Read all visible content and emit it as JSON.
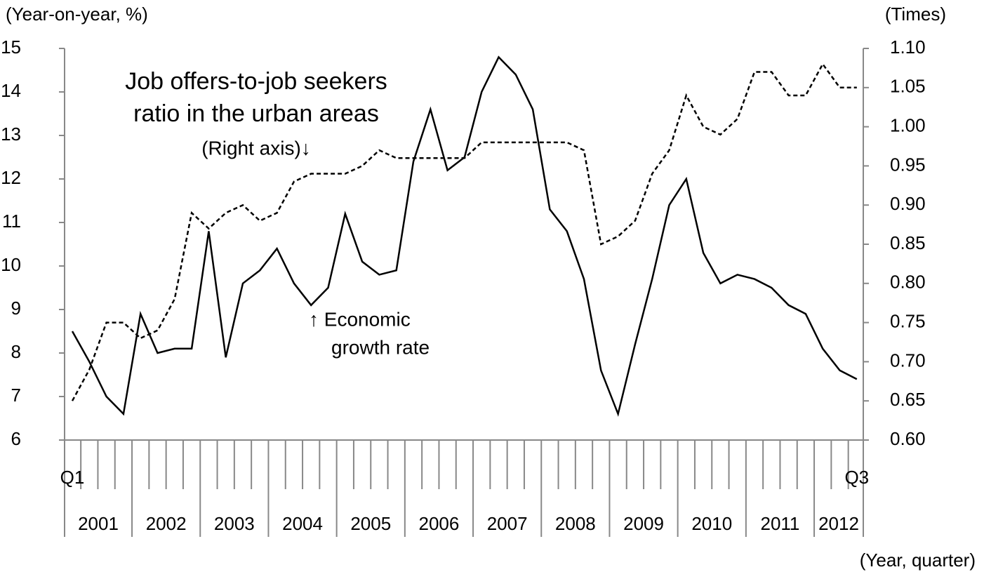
{
  "chart_data": {
    "type": "line",
    "ylabel": "(Year-on-year,  %)",
    "y2label": "(Times)",
    "xlabel": "(Year, quarter)",
    "annotations": [
      "Job offers-to-job seekers",
      "ratio in the urban areas",
      "(Right axis)↓",
      "↑ Economic",
      "growth rate"
    ],
    "categories": [
      "Q1",
      null,
      null,
      null,
      null,
      null,
      null,
      null,
      null,
      null,
      null,
      null,
      null,
      null,
      null,
      null,
      null,
      null,
      null,
      null,
      null,
      null,
      null,
      null,
      null,
      null,
      null,
      null,
      null,
      null,
      null,
      null,
      null,
      null,
      null,
      null,
      null,
      null,
      null,
      null,
      null,
      null,
      null,
      null,
      null,
      null,
      "Q3"
    ],
    "years": [
      "2001",
      "2002",
      "2003",
      "2004",
      "2005",
      "2006",
      "2007",
      "2008",
      "2009",
      "2010",
      "2011",
      "2012"
    ],
    "series": [
      {
        "name": "Economic growth rate",
        "color": "#000000",
        "dashed": false,
        "values": [
          8.5,
          7.8,
          7.0,
          6.6,
          8.9,
          8.0,
          8.1,
          8.1,
          10.8,
          7.9,
          9.6,
          9.9,
          10.4,
          9.6,
          9.1,
          9.5,
          11.2,
          10.1,
          9.8,
          9.9,
          12.4,
          13.6,
          12.2,
          12.5,
          14.0,
          14.8,
          14.4,
          13.6,
          11.3,
          10.8,
          9.7,
          7.6,
          6.6,
          8.2,
          9.7,
          11.4,
          12.0,
          10.3,
          9.6,
          9.8,
          9.7,
          9.5,
          9.1,
          8.9,
          8.1,
          7.6,
          7.4
        ]
      },
      {
        "name": "Job offers-to-job seekers ratio in the urban areas",
        "color": "#000000",
        "dashed": true,
        "axis": "y2",
        "values": [
          0.65,
          0.69,
          0.75,
          0.75,
          0.73,
          0.74,
          0.78,
          0.89,
          0.87,
          0.89,
          0.9,
          0.88,
          0.89,
          0.93,
          0.94,
          0.94,
          0.94,
          0.95,
          0.97,
          0.96,
          0.96,
          0.96,
          0.96,
          0.96,
          0.98,
          0.98,
          0.98,
          0.98,
          0.98,
          0.98,
          0.97,
          0.85,
          0.86,
          0.88,
          0.94,
          0.97,
          1.04,
          1.0,
          0.99,
          1.01,
          1.07,
          1.07,
          1.04,
          1.04,
          1.08,
          1.05,
          1.05
        ]
      }
    ],
    "ylim": [
      6,
      15
    ],
    "yticks": [
      6,
      7,
      8,
      9,
      10,
      11,
      12,
      13,
      14,
      15
    ],
    "y2lim": [
      0.6,
      1.1
    ],
    "y2ticks": [
      {
        "value": 0.6,
        "label": "0.60"
      },
      0.65,
      {
        "value": 0.7,
        "label": "0.70"
      },
      0.75,
      {
        "value": 0.8,
        "label": "0.80"
      },
      0.85,
      {
        "value": 0.9,
        "label": "0.90"
      },
      0.95,
      {
        "value": 1.0,
        "label": "1.00"
      },
      1.05,
      {
        "value": 1.1,
        "label": "1.10"
      }
    ],
    "grid": false
  }
}
